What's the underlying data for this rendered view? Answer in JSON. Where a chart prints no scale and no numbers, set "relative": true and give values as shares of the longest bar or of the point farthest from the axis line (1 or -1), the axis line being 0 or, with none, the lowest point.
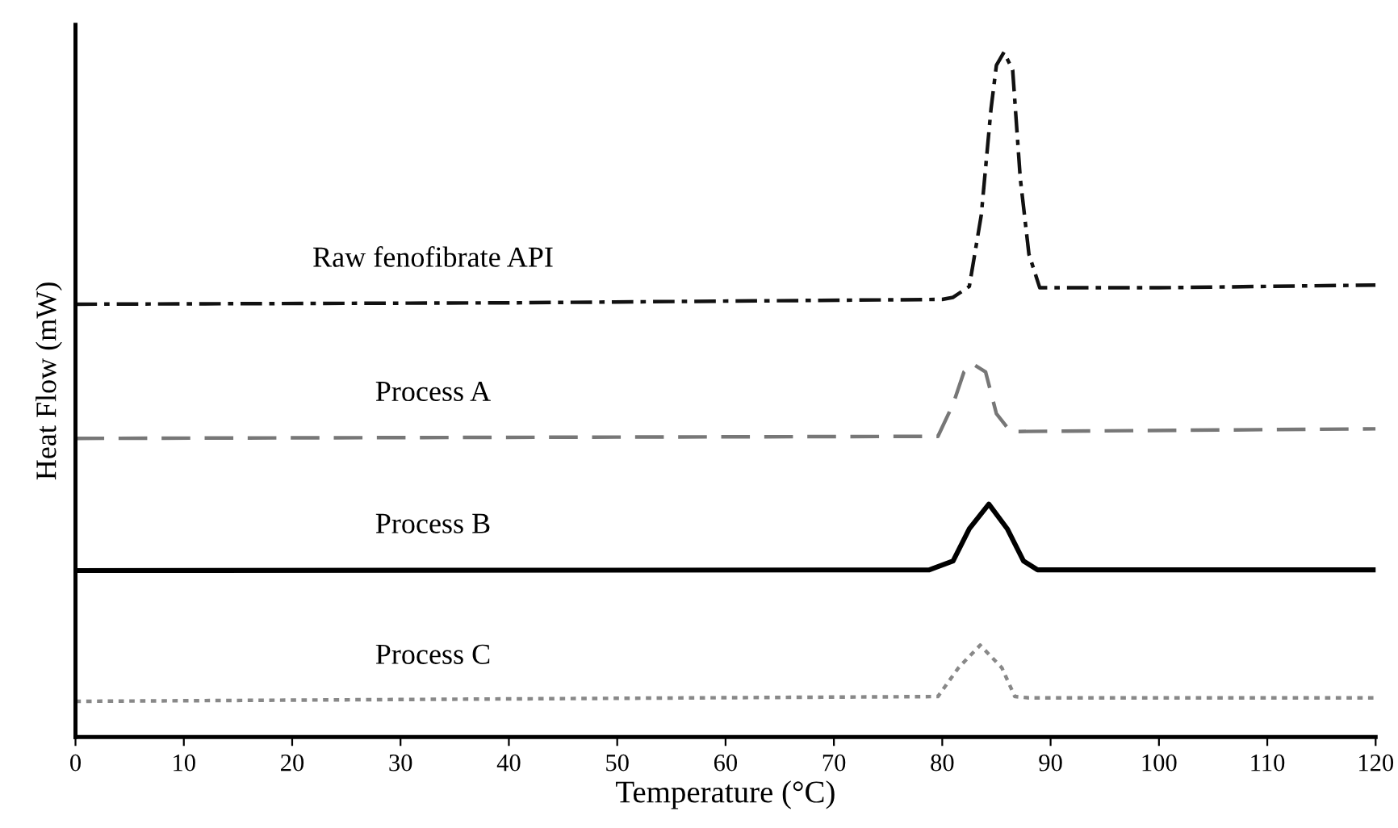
{
  "chart_data": {
    "type": "line",
    "relative": true,
    "xlabel": "Temperature (°C)",
    "ylabel": "Heat Flow (mW)",
    "xlim": [
      0,
      120
    ],
    "xticks": [
      0,
      10,
      20,
      30,
      40,
      50,
      60,
      70,
      80,
      90,
      100,
      110,
      120
    ],
    "grid": false,
    "legend": false,
    "marker": "none",
    "series": [
      {
        "name": "Raw fenofibrate API",
        "color": "#111111",
        "line_style": "dashdot",
        "x": [
          0,
          40,
          80,
          81,
          82.5,
          83.6,
          84.5,
          85,
          85.7,
          86.5,
          87.2,
          88,
          89,
          100,
          120
        ],
        "values": [
          0.632,
          0.634,
          0.639,
          0.642,
          0.658,
          0.762,
          0.917,
          0.981,
          1,
          0.974,
          0.816,
          0.705,
          0.656,
          0.656,
          0.66
        ]
      },
      {
        "name": "Process A",
        "color": "#777777",
        "line_style": "dashed",
        "x": [
          0,
          79.6,
          81,
          82,
          82.8,
          84,
          85,
          86.3,
          120
        ],
        "values": [
          0.436,
          0.439,
          0.486,
          0.533,
          0.545,
          0.533,
          0.472,
          0.446,
          0.45
        ]
      },
      {
        "name": "Process B",
        "color": "#000000",
        "line_style": "solid",
        "x": [
          0,
          78.8,
          81,
          82.5,
          84.3,
          86,
          87.5,
          88.8,
          120
        ],
        "values": [
          0.243,
          0.244,
          0.257,
          0.304,
          0.34,
          0.304,
          0.257,
          0.244,
          0.244
        ]
      },
      {
        "name": "Process C",
        "color": "#888888",
        "line_style": "dotted",
        "x": [
          0,
          79.6,
          81.5,
          83.5,
          85.5,
          86.7,
          88,
          120
        ],
        "values": [
          0.052,
          0.059,
          0.101,
          0.134,
          0.101,
          0.059,
          0.057,
          0.057
        ]
      }
    ]
  }
}
